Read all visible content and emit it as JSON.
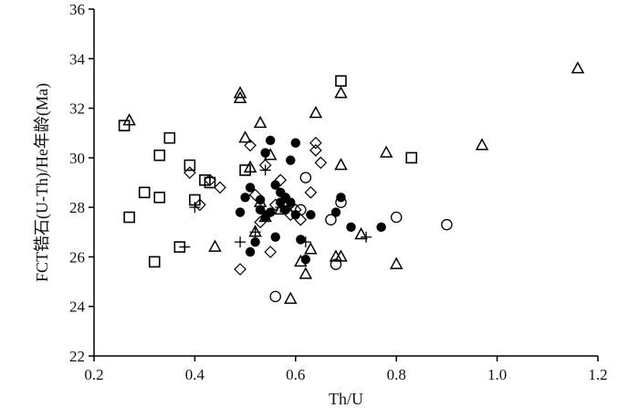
{
  "chart_data": {
    "type": "scatter",
    "xlabel": "Th/U",
    "ylabel": "FCT锆石(U-Th)/He年龄(Ma)",
    "xlim": [
      0.2,
      1.2
    ],
    "ylim": [
      22,
      36
    ],
    "x_ticks": [
      "0.2",
      "0.4",
      "0.6",
      "0.8",
      "1.0",
      "1.2"
    ],
    "y_ticks": [
      "22",
      "24",
      "26",
      "28",
      "30",
      "32",
      "34",
      "36"
    ],
    "grid": false,
    "legend": "none",
    "series": [
      {
        "marker": "open-square",
        "points": [
          [
            0.26,
            31.3
          ],
          [
            0.27,
            27.6
          ],
          [
            0.3,
            28.6
          ],
          [
            0.32,
            25.8
          ],
          [
            0.33,
            30.1
          ],
          [
            0.33,
            28.4
          ],
          [
            0.35,
            30.8
          ],
          [
            0.37,
            26.4
          ],
          [
            0.39,
            29.7
          ],
          [
            0.4,
            28.3
          ],
          [
            0.42,
            29.1
          ],
          [
            0.43,
            29.0
          ],
          [
            0.5,
            29.5
          ],
          [
            0.69,
            33.1
          ],
          [
            0.83,
            30.0
          ]
        ]
      },
      {
        "marker": "open-triangle",
        "points": [
          [
            0.27,
            31.5
          ],
          [
            0.44,
            26.4
          ],
          [
            0.49,
            32.6
          ],
          [
            0.49,
            32.4
          ],
          [
            0.5,
            30.8
          ],
          [
            0.51,
            29.6
          ],
          [
            0.52,
            27.0
          ],
          [
            0.53,
            31.4
          ],
          [
            0.53,
            28.2
          ],
          [
            0.54,
            27.6
          ],
          [
            0.55,
            30.1
          ],
          [
            0.57,
            27.9
          ],
          [
            0.59,
            24.3
          ],
          [
            0.61,
            25.8
          ],
          [
            0.62,
            25.3
          ],
          [
            0.63,
            26.3
          ],
          [
            0.64,
            31.8
          ],
          [
            0.68,
            26.0
          ],
          [
            0.69,
            29.7
          ],
          [
            0.69,
            26.0
          ],
          [
            0.69,
            32.6
          ],
          [
            0.73,
            26.9
          ],
          [
            0.78,
            30.2
          ],
          [
            0.8,
            25.7
          ],
          [
            0.97,
            30.5
          ],
          [
            1.16,
            33.6
          ]
        ]
      },
      {
        "marker": "open-diamond",
        "points": [
          [
            0.39,
            29.4
          ],
          [
            0.41,
            28.1
          ],
          [
            0.43,
            29.1
          ],
          [
            0.45,
            28.8
          ],
          [
            0.49,
            25.5
          ],
          [
            0.51,
            30.5
          ],
          [
            0.52,
            28.5
          ],
          [
            0.53,
            27.4
          ],
          [
            0.54,
            29.7
          ],
          [
            0.55,
            26.2
          ],
          [
            0.56,
            28.1
          ],
          [
            0.57,
            29.1
          ],
          [
            0.58,
            28.0
          ],
          [
            0.59,
            27.7
          ],
          [
            0.6,
            27.9
          ],
          [
            0.61,
            27.5
          ],
          [
            0.63,
            28.6
          ],
          [
            0.64,
            30.3
          ],
          [
            0.64,
            30.6
          ],
          [
            0.65,
            29.8
          ]
        ]
      },
      {
        "marker": "filled-circle",
        "points": [
          [
            0.49,
            27.8
          ],
          [
            0.5,
            28.4
          ],
          [
            0.51,
            26.2
          ],
          [
            0.51,
            28.8
          ],
          [
            0.52,
            26.6
          ],
          [
            0.53,
            28.3
          ],
          [
            0.53,
            27.9
          ],
          [
            0.54,
            27.6
          ],
          [
            0.54,
            30.2
          ],
          [
            0.55,
            30.7
          ],
          [
            0.55,
            27.8
          ],
          [
            0.56,
            28.9
          ],
          [
            0.56,
            26.8
          ],
          [
            0.57,
            28.2
          ],
          [
            0.57,
            28.6
          ],
          [
            0.58,
            27.9
          ],
          [
            0.58,
            28.4
          ],
          [
            0.59,
            28.2
          ],
          [
            0.59,
            29.9
          ],
          [
            0.6,
            30.6
          ],
          [
            0.6,
            27.7
          ],
          [
            0.61,
            26.7
          ],
          [
            0.62,
            25.9
          ],
          [
            0.63,
            27.7
          ],
          [
            0.68,
            27.8
          ],
          [
            0.69,
            28.4
          ],
          [
            0.71,
            27.2
          ],
          [
            0.77,
            27.2
          ]
        ]
      },
      {
        "marker": "open-circle",
        "points": [
          [
            0.56,
            24.4
          ],
          [
            0.61,
            27.9
          ],
          [
            0.62,
            29.2
          ],
          [
            0.67,
            27.5
          ],
          [
            0.68,
            25.7
          ],
          [
            0.69,
            28.2
          ],
          [
            0.8,
            27.6
          ],
          [
            0.9,
            27.3
          ]
        ]
      },
      {
        "marker": "plus",
        "points": [
          [
            0.38,
            26.4
          ],
          [
            0.4,
            28.0
          ],
          [
            0.49,
            26.6
          ],
          [
            0.52,
            27.0
          ],
          [
            0.54,
            29.5
          ],
          [
            0.57,
            28.0
          ],
          [
            0.62,
            26.6
          ],
          [
            0.74,
            26.8
          ]
        ]
      }
    ]
  }
}
